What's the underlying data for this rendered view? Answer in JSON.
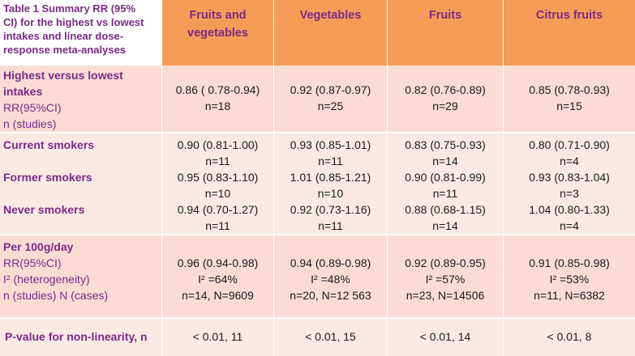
{
  "caption": [
    "Table 1 Summary RR (95%",
    "CI) for the highest vs lowest",
    "intakes and linear dose-",
    "response meta-analyses"
  ],
  "columns": [
    [
      "Fruits and",
      "vegetables"
    ],
    [
      "Vegetables"
    ],
    [
      "Fruits"
    ],
    [
      "Citrus fruits"
    ]
  ],
  "highest": {
    "label_bold": [
      "Highest versus lowest",
      "intakes"
    ],
    "label_plain": [
      "RR(95%CI)",
      "n (studies)"
    ],
    "values": [
      [
        "0.86 ( 0.78-0.94)",
        "n=18"
      ],
      [
        "0.92 (0.87-0.97)",
        "n=25"
      ],
      [
        "0.82 (0.76-0.89)",
        "n=29"
      ],
      [
        "0.85 (0.78-0.93)",
        "n=15"
      ]
    ]
  },
  "smokers": [
    {
      "label": "Current smokers",
      "values": [
        [
          "0.90 (0.81-1.00)",
          "n=11"
        ],
        [
          "0.93 (0.85-1.01)",
          "n=11"
        ],
        [
          "0.83 (0.75-0.93)",
          "n=14"
        ],
        [
          "0.80 (0.71-0.90)",
          "n=4"
        ]
      ]
    },
    {
      "label": "Former smokers",
      "values": [
        [
          "0.95 (0.83-1.10)",
          "n=10"
        ],
        [
          "1.01 (0.85-1.21)",
          "n=10"
        ],
        [
          "0.90 (0.81-0.99)",
          "n=11"
        ],
        [
          "0.93 (0.83-1.04)",
          "n=3"
        ]
      ]
    },
    {
      "label": "Never smokers",
      "values": [
        [
          "0.94 (0.70-1.27)",
          "n=11"
        ],
        [
          "0.92 (0.73-1.16)",
          "n=11"
        ],
        [
          "0.88 (0.68-1.15)",
          "n=14"
        ],
        [
          "1.04 (0.80-1.33)",
          "n=4"
        ]
      ]
    }
  ],
  "per100": {
    "label_bold": "Per 100g/day",
    "label_plain": [
      "RR(95%CI)",
      "I² (heterogeneity)",
      "n (studies) N (cases)"
    ],
    "values": [
      [
        "0.96 (0.94-0.98)",
        "I² =64%",
        "n=14, N=9609"
      ],
      [
        "0.94 (0.89-0.98)",
        "I² =48%",
        "n=20,  N=12 563"
      ],
      [
        "0.92 (0.89-0.95)",
        "I² =57%",
        "n=23, N=14506"
      ],
      [
        "0.91 (0.85-0.98)",
        "I² =53%",
        "n=11, N=6382"
      ]
    ]
  },
  "pvalue": {
    "label": "P-value for non-linearity, n",
    "values": [
      "< 0.01, 11",
      "< 0.01, 15",
      "< 0.01, 14",
      "< 0.01, 8"
    ]
  }
}
